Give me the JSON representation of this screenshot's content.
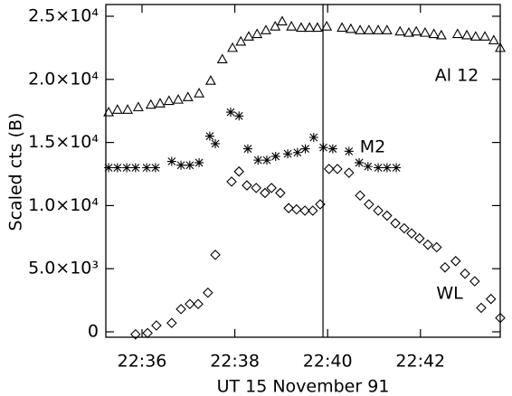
{
  "chart_data": {
    "type": "scatter",
    "xlabel": "UT 15 November 91",
    "ylabel": "Scaled cts (B)",
    "xlim": [
      35.22,
      43.72
    ],
    "ylim": [
      -430,
      25930
    ],
    "xticks": [
      {
        "value": 36,
        "label": "22:36"
      },
      {
        "value": 38,
        "label": "22:38"
      },
      {
        "value": 40,
        "label": "22:40"
      },
      {
        "value": 42,
        "label": "22:42"
      }
    ],
    "yticks": [
      0,
      {
        "value": 5000,
        "label": "5.0×10³"
      },
      {
        "value": 10000,
        "label": "1.0×10⁴"
      },
      {
        "value": 15000,
        "label": "1.5×10⁴"
      },
      {
        "value": 20000,
        "label": "2.0×10⁴"
      },
      {
        "value": 25000,
        "label": "2.5×10⁴"
      }
    ],
    "vline": 39.9,
    "series": [
      {
        "name": "Al 12",
        "color": "#000000",
        "marker": "triangle",
        "x": [
          35.28,
          35.47,
          35.69,
          35.92,
          36.19,
          36.39,
          36.58,
          36.78,
          36.99,
          37.23,
          37.48,
          37.73,
          37.95,
          38.13,
          38.3,
          38.48,
          38.67,
          38.87,
          39.02,
          39.22,
          39.43,
          39.61,
          39.78,
          39.98,
          40.31,
          40.5,
          40.7,
          40.89,
          41.09,
          41.28,
          41.56,
          41.75,
          41.91,
          42.1,
          42.29,
          42.45,
          42.8,
          43.0,
          43.19,
          43.39,
          43.58,
          43.72
        ],
        "values": [
          17400,
          17600,
          17600,
          17800,
          18000,
          18100,
          18300,
          18400,
          18600,
          18900,
          19900,
          21600,
          22500,
          23000,
          23400,
          23600,
          23900,
          24200,
          24600,
          24200,
          24100,
          24100,
          24100,
          24200,
          24100,
          24000,
          23900,
          23900,
          23900,
          23900,
          23800,
          23700,
          23800,
          23700,
          23600,
          23500,
          23600,
          23500,
          23400,
          23400,
          23100,
          22500
        ]
      },
      {
        "name": "M2",
        "color": "#000000",
        "marker": "asterisk",
        "x": [
          35.28,
          35.47,
          35.67,
          35.86,
          36.1,
          36.29,
          36.64,
          36.84,
          37.03,
          37.23,
          37.46,
          37.58,
          37.91,
          38.09,
          38.28,
          38.5,
          38.69,
          38.88,
          39.14,
          39.35,
          39.52,
          39.7,
          39.91,
          40.11,
          40.46,
          40.68,
          40.87,
          41.09,
          41.28,
          41.48
        ],
        "values": [
          13000,
          13000,
          13000,
          13000,
          13000,
          13000,
          13500,
          13200,
          13200,
          13400,
          15500,
          14900,
          17400,
          17100,
          14500,
          13600,
          13600,
          13900,
          14100,
          14200,
          14500,
          15400,
          14600,
          14500,
          14300,
          13400,
          13100,
          13000,
          13000,
          13000
        ]
      },
      {
        "name": "WL",
        "color": "#000000",
        "marker": "diamond",
        "x": [
          35.86,
          36.12,
          36.31,
          36.64,
          36.84,
          37.03,
          37.21,
          37.42,
          37.58,
          37.93,
          38.09,
          38.26,
          38.46,
          38.65,
          38.79,
          38.98,
          39.16,
          39.33,
          39.51,
          39.68,
          39.84,
          40.03,
          40.21,
          40.46,
          40.7,
          40.89,
          41.09,
          41.28,
          41.46,
          41.65,
          41.81,
          41.98,
          42.16,
          42.35,
          42.53,
          42.76,
          42.96,
          43.17,
          43.31,
          43.52,
          43.72
        ],
        "values": [
          -200,
          -100,
          500,
          700,
          1800,
          2200,
          2200,
          3100,
          6100,
          11900,
          12700,
          11600,
          11400,
          11000,
          11400,
          11000,
          9800,
          9700,
          9600,
          9600,
          10100,
          12900,
          12900,
          12600,
          10800,
          10100,
          9600,
          9200,
          8600,
          8200,
          7800,
          7400,
          6900,
          6700,
          5100,
          5600,
          4600,
          4000,
          1900,
          2600,
          1100
        ]
      }
    ]
  }
}
